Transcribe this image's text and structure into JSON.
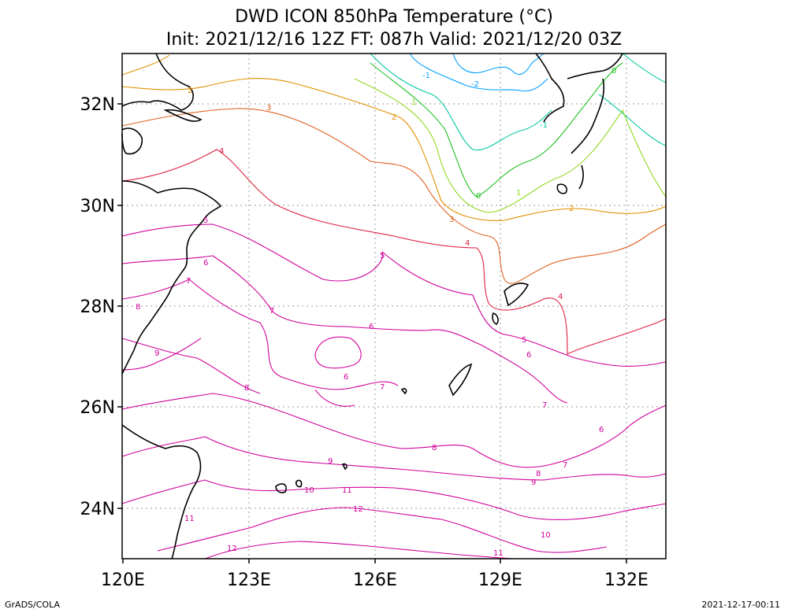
{
  "title": {
    "line1": "DWD ICON 850hPa Temperature (°C)",
    "line2": "Init: 2021/12/16 12Z  FT: 087h  Valid: 2021/12/20 03Z"
  },
  "axes": {
    "x_ticks": [
      "120E",
      "123E",
      "126E",
      "129E",
      "132E"
    ],
    "y_ticks": [
      "32N",
      "30N",
      "28N",
      "26N",
      "24N"
    ]
  },
  "contour_labels": [
    "-2",
    "-1",
    "0",
    "1",
    "2",
    "3",
    "4",
    "5",
    "6",
    "7",
    "8",
    "9",
    "10",
    "11",
    "12"
  ],
  "footer": {
    "left": "GrADS/COLA",
    "right": "2021-12-17-00:11"
  },
  "colors": {
    "coast": "#000000",
    "grid": "#9a9a9a",
    "cold": "#00a0ff",
    "teal": "#00c8a0",
    "green": "#20c020",
    "light_green": "#90d820",
    "orange": "#e09000",
    "red_orange": "#e06020",
    "red": "#e02040",
    "magenta": "#d0009a"
  }
}
